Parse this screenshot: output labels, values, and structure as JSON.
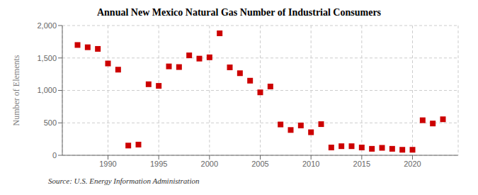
{
  "chart_data": {
    "type": "scatter",
    "title": "Annual New Mexico Natural Gas Number of Industrial Consumers",
    "ylabel": "Number of Elements",
    "annotations": [
      "Source: U.S. Energy Information Administration"
    ],
    "x": [
      1987,
      1988,
      1989,
      1990,
      1991,
      1992,
      1993,
      1994,
      1995,
      1996,
      1997,
      1998,
      1999,
      2000,
      2001,
      2002,
      2003,
      2004,
      2005,
      2006,
      2007,
      2008,
      2009,
      2010,
      2011,
      2012,
      2013,
      2014,
      2015,
      2016,
      2017,
      2018,
      2019,
      2020,
      2021,
      2022,
      2023
    ],
    "values": [
      1700,
      1665,
      1640,
      1415,
      1320,
      150,
      165,
      1095,
      1070,
      1370,
      1360,
      1540,
      1490,
      1510,
      1880,
      1355,
      1265,
      1150,
      970,
      1060,
      475,
      390,
      460,
      355,
      480,
      120,
      140,
      140,
      120,
      100,
      115,
      100,
      85,
      85,
      540,
      490,
      555
    ],
    "color": "#cc0000",
    "marker": "square",
    "xlim": [
      1985.5,
      2024.5
    ],
    "ylim": [
      0,
      2000
    ],
    "xticks": [
      1990,
      1995,
      2000,
      2005,
      2010,
      2015,
      2020
    ],
    "yticks": [
      0,
      500,
      {
        "value": 1000,
        "label": "1,000"
      },
      {
        "value": 1500,
        "label": "1,500"
      },
      {
        "value": 2000,
        "label": "2,000"
      }
    ],
    "grid": true
  }
}
